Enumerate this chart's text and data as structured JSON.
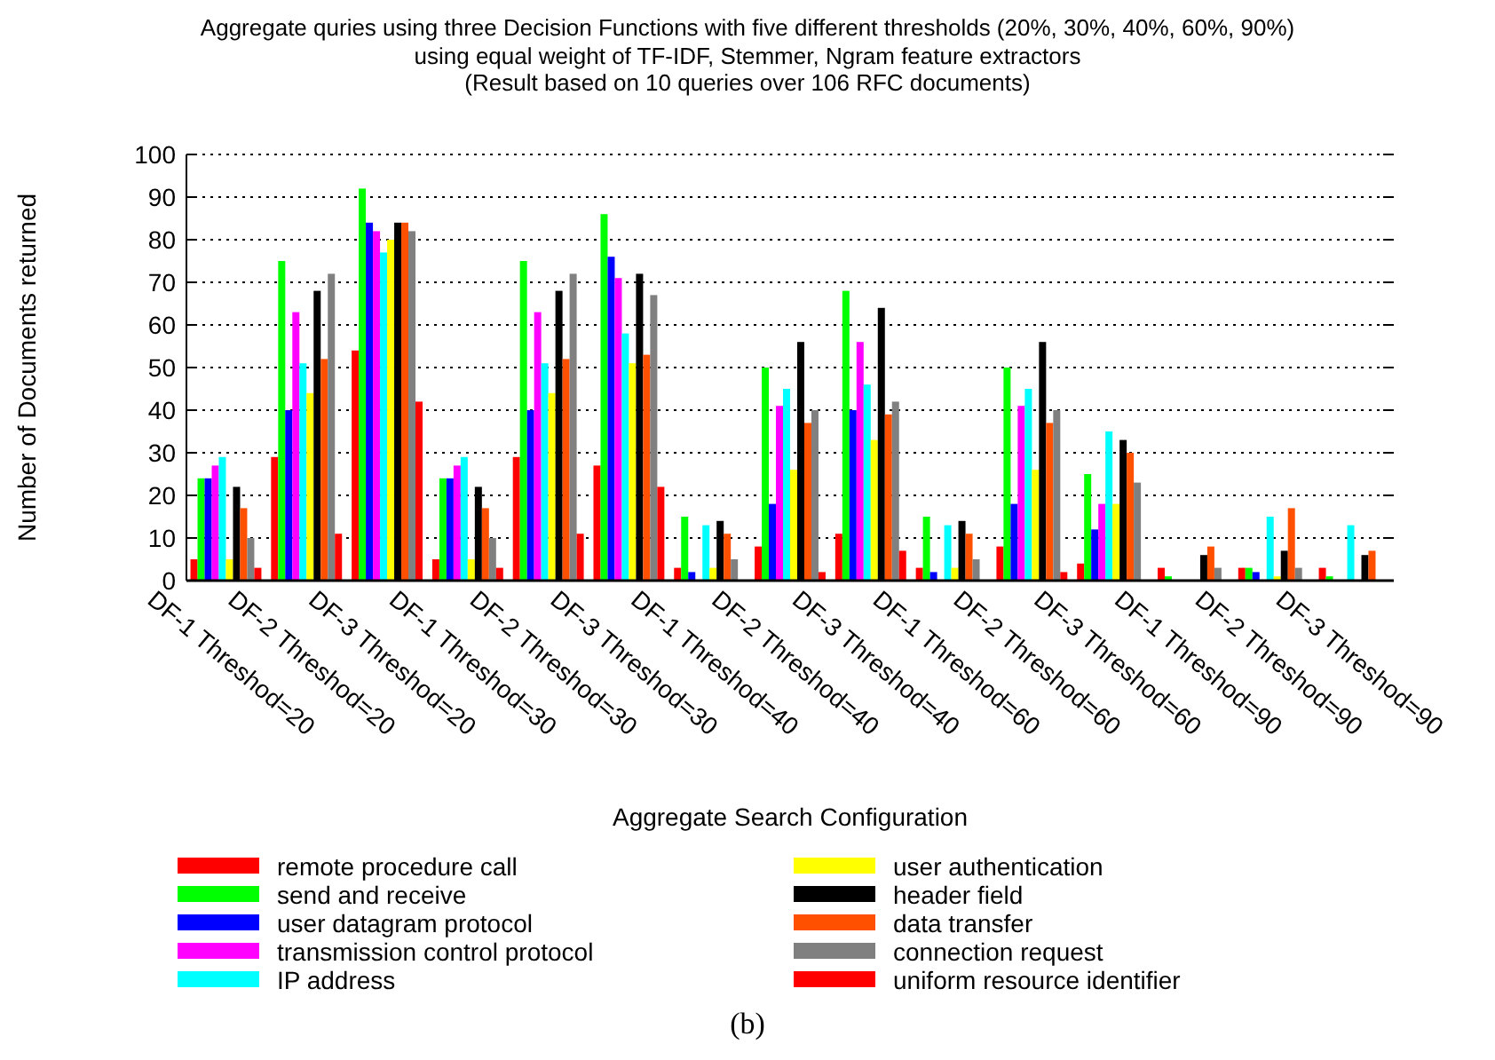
{
  "chart_data": {
    "type": "bar",
    "title": "Aggregate quries using three Decision Functions with five different thresholds (20%, 30%, 40%, 60%, 90%)",
    "subtitle": "using equal weight of TF-IDF, Stemmer, Ngram feature extractors\n(Result based on 10 queries over 106 RFC documents)",
    "xlabel": "Aggregate Search Configuration",
    "ylabel": "Number of Documents returned",
    "categories": [
      "DF-1 Threshod=20",
      "DF-2 Threshod=20",
      "DF-3 Threshod=20",
      "DF-1 Threshod=30",
      "DF-2 Threshod=30",
      "DF-3 Threshod=30",
      "DF-1 Threshod=40",
      "DF-2 Threshod=40",
      "DF-3 Threshod=40",
      "DF-1 Threshod=60",
      "DF-2 Threshod=60",
      "DF-3 Threshod=60",
      "DF-1 Threshod=90",
      "DF-2 Threshod=90",
      "DF-3 Threshod=90"
    ],
    "series": [
      {
        "name": "remote procedure call",
        "color": "#ff0000",
        "values": [
          5,
          29,
          54,
          5,
          29,
          27,
          3,
          8,
          11,
          3,
          8,
          4,
          3,
          3,
          3
        ]
      },
      {
        "name": "send and receive",
        "color": "#00ff00",
        "values": [
          24,
          75,
          92,
          24,
          75,
          86,
          15,
          50,
          68,
          15,
          50,
          25,
          1,
          3,
          1
        ]
      },
      {
        "name": "user datagram protocol",
        "color": "#0000ff",
        "values": [
          24,
          40,
          84,
          24,
          40,
          76,
          2,
          18,
          40,
          2,
          18,
          12,
          0,
          2,
          0
        ]
      },
      {
        "name": "transmission control protocol",
        "color": "#ff00ff",
        "values": [
          27,
          63,
          82,
          27,
          63,
          71,
          0,
          41,
          56,
          0,
          41,
          18,
          0,
          0,
          0
        ]
      },
      {
        "name": "IP address",
        "color": "#00ffff",
        "values": [
          29,
          51,
          77,
          29,
          51,
          58,
          13,
          45,
          46,
          13,
          45,
          35,
          0,
          15,
          13
        ]
      },
      {
        "name": "user authentication",
        "color": "#ffff00",
        "values": [
          5,
          44,
          80,
          5,
          44,
          51,
          3,
          26,
          33,
          3,
          26,
          18,
          0,
          1,
          0
        ]
      },
      {
        "name": "header field",
        "color": "#000000",
        "values": [
          22,
          68,
          84,
          22,
          68,
          72,
          14,
          56,
          64,
          14,
          56,
          33,
          6,
          7,
          6
        ]
      },
      {
        "name": "data transfer",
        "color": "#ff5000",
        "values": [
          17,
          52,
          84,
          17,
          52,
          53,
          11,
          37,
          39,
          11,
          37,
          30,
          8,
          17,
          7
        ]
      },
      {
        "name": "connection request",
        "color": "#808080",
        "values": [
          10,
          72,
          82,
          10,
          72,
          67,
          5,
          40,
          42,
          5,
          40,
          23,
          3,
          3,
          0
        ]
      },
      {
        "name": "uniform resource identifier",
        "color": "#ff0000",
        "values": [
          3,
          11,
          42,
          3,
          11,
          22,
          0,
          2,
          7,
          0,
          2,
          0,
          0,
          0,
          0
        ]
      }
    ],
    "ylim": [
      0,
      100
    ],
    "yticks": [
      0,
      10,
      20,
      30,
      40,
      50,
      60,
      70,
      80,
      90,
      100
    ],
    "grid": "y",
    "legend": "bottom",
    "annotations": [
      "(b)"
    ]
  }
}
